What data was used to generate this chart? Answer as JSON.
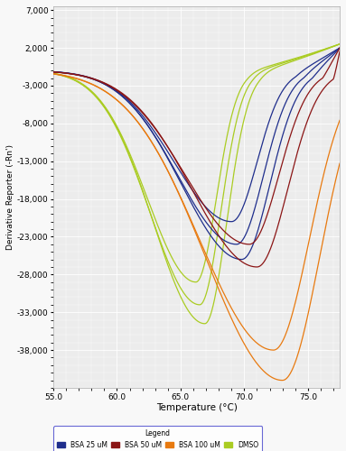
{
  "xlabel": "Temperature (°C)",
  "ylabel": "Derivative Reporter (-Rn')",
  "xlim": [
    55.0,
    77.5
  ],
  "ylim": [
    -43000,
    7500
  ],
  "yticks": [
    7000,
    2000,
    -3000,
    -8000,
    -13000,
    -18000,
    -23000,
    -28000,
    -33000,
    -38000
  ],
  "xticks": [
    55.0,
    60.0,
    65.0,
    70.0,
    75.0
  ],
  "colors": {
    "bsa25": "#1f2e8c",
    "bsa50": "#8b1515",
    "bsa100": "#e87a10",
    "dmso": "#aacc22"
  },
  "legend_title": "Legend",
  "legend_labels": [
    "BSA 25 uM",
    "BSA 50 uM",
    "BSA 100 uM",
    "DMSO"
  ],
  "fig_bg": "#f8f8f8",
  "axes_bg": "#ececec",
  "grid_color": "#ffffff"
}
